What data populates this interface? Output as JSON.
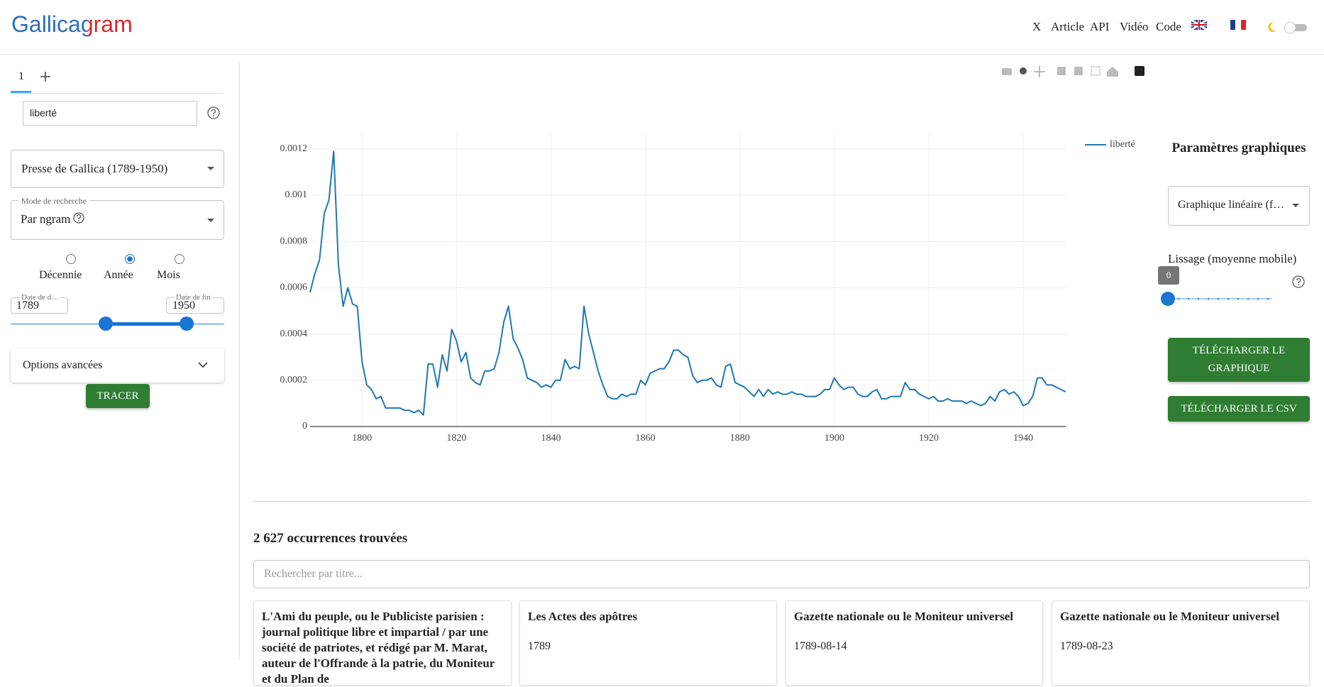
{
  "header": {
    "logo": "Gallicagram",
    "nav": [
      "X",
      "Article",
      "API",
      "Vidéo",
      "Code"
    ]
  },
  "sidebar": {
    "tab": "1",
    "query": "liberté",
    "corpus": "Presse de Gallica (1789-1950)",
    "mode_label": "Mode de recherche",
    "mode": "Par ngram",
    "resolutions": [
      "Décennie",
      "Année",
      "Mois"
    ],
    "start_label": "Date de d…",
    "start": 1789,
    "end_label": "Date de fin",
    "end": 1950,
    "advanced": "Options avancées",
    "button": "TRACER"
  },
  "chart_data": {
    "type": "line",
    "x": [
      1789,
      1790,
      1791,
      1792,
      1793,
      1794,
      1795,
      1796,
      1797,
      1798,
      1799,
      1800,
      1801,
      1802,
      1803,
      1804,
      1805,
      1806,
      1807,
      1808,
      1809,
      1810,
      1811,
      1812,
      1813,
      1814,
      1815,
      1816,
      1817,
      1818,
      1819,
      1820,
      1821,
      1822,
      1823,
      1824,
      1825,
      1826,
      1827,
      1828,
      1829,
      1830,
      1831,
      1832,
      1833,
      1834,
      1835,
      1836,
      1837,
      1838,
      1839,
      1840,
      1841,
      1842,
      1843,
      1844,
      1845,
      1846,
      1847,
      1848,
      1849,
      1850,
      1851,
      1852,
      1853,
      1854,
      1855,
      1856,
      1857,
      1858,
      1859,
      1860,
      1861,
      1862,
      1863,
      1864,
      1865,
      1866,
      1867,
      1868,
      1869,
      1870,
      1871,
      1872,
      1873,
      1874,
      1875,
      1876,
      1877,
      1878,
      1879,
      1880,
      1881,
      1882,
      1883,
      1884,
      1885,
      1886,
      1887,
      1888,
      1889,
      1890,
      1891,
      1892,
      1893,
      1894,
      1895,
      1896,
      1897,
      1898,
      1899,
      1900,
      1901,
      1902,
      1903,
      1904,
      1905,
      1906,
      1907,
      1908,
      1909,
      1910,
      1911,
      1912,
      1913,
      1914,
      1915,
      1916,
      1917,
      1918,
      1919,
      1920,
      1921,
      1922,
      1923,
      1924,
      1925,
      1926,
      1927,
      1928,
      1929,
      1930,
      1931,
      1932,
      1933,
      1934,
      1935,
      1936,
      1937,
      1938,
      1939,
      1940,
      1941,
      1942,
      1943,
      1944,
      1945,
      1946,
      1947,
      1948,
      1949
    ],
    "series": [
      {
        "name": "liberté",
        "color": "#1f77b4",
        "values": [
          0.00058,
          0.00066,
          0.00072,
          0.00092,
          0.00098,
          0.00119,
          0.0007,
          0.00052,
          0.0006,
          0.00053,
          0.00052,
          0.00028,
          0.00018,
          0.00016,
          0.00012,
          0.00013,
          8e-05,
          8e-05,
          8e-05,
          8e-05,
          7e-05,
          7e-05,
          6e-05,
          7e-05,
          5e-05,
          0.00027,
          0.00027,
          0.00017,
          0.00031,
          0.00024,
          0.00042,
          0.00037,
          0.00028,
          0.00032,
          0.00021,
          0.00019,
          0.00018,
          0.00024,
          0.00024,
          0.00025,
          0.00032,
          0.00045,
          0.00052,
          0.00038,
          0.00034,
          0.00029,
          0.00021,
          0.0002,
          0.00019,
          0.00017,
          0.00018,
          0.00017,
          0.0002,
          0.0002,
          0.00029,
          0.00025,
          0.00026,
          0.00025,
          0.00052,
          0.0004,
          0.00032,
          0.00024,
          0.00018,
          0.00013,
          0.00012,
          0.00012,
          0.00014,
          0.00013,
          0.00014,
          0.00014,
          0.0002,
          0.00018,
          0.00023,
          0.00024,
          0.00025,
          0.00025,
          0.00028,
          0.00033,
          0.00033,
          0.00031,
          0.0003,
          0.00022,
          0.00019,
          0.0002,
          0.0002,
          0.00021,
          0.00018,
          0.00017,
          0.00026,
          0.00027,
          0.00019,
          0.00018,
          0.00017,
          0.00015,
          0.00013,
          0.00016,
          0.00013,
          0.00016,
          0.00014,
          0.00015,
          0.00014,
          0.00014,
          0.00015,
          0.00014,
          0.00014,
          0.00013,
          0.00013,
          0.00013,
          0.00014,
          0.00016,
          0.00016,
          0.00021,
          0.00018,
          0.00016,
          0.00017,
          0.00017,
          0.00014,
          0.00013,
          0.00013,
          0.00015,
          0.00016,
          0.00012,
          0.00012,
          0.00013,
          0.00013,
          0.00013,
          0.00019,
          0.00016,
          0.00016,
          0.00014,
          0.00013,
          0.00012,
          0.00013,
          0.00011,
          0.00011,
          0.00012,
          0.00011,
          0.00011,
          0.00011,
          0.0001,
          0.00011,
          0.0001,
          9e-05,
          0.0001,
          0.00013,
          0.00011,
          0.00015,
          0.00016,
          0.00014,
          0.00015,
          0.00013,
          9e-05,
          0.0001,
          0.00013,
          0.00021,
          0.00021,
          0.00018,
          0.00018,
          0.00017,
          0.00016,
          0.00015
        ]
      }
    ],
    "xlim": [
      1789,
      1949
    ],
    "xticks": [
      1800,
      1820,
      1840,
      1860,
      1880,
      1900,
      1920,
      1940
    ],
    "ylim": [
      0,
      0.00127
    ],
    "yticks": [
      0,
      0.0002,
      0.0004,
      0.0006,
      0.0008,
      0.001,
      0.0012
    ],
    "grid": true,
    "legend": "top-right"
  },
  "settings": {
    "title": "Paramètres graphiques",
    "chart_type": "Graphique linéaire (f…",
    "smoothing_label": "Lissage (moyenne mobile)",
    "smoothing": 0,
    "download_chart": "TÉLÉCHARGER LE GRAPHIQUE",
    "download_csv": "TÉLÉCHARGER LE CSV"
  },
  "results": {
    "count": "2 627 occurrences trouvées",
    "search_placeholder": "Rechercher par titre...",
    "cards": [
      {
        "title": "L'Ami du peuple, ou le Publiciste parisien : journal politique libre et impartial / par une société de patriotes, et rédigé par M. Marat, auteur de l'Offrande à la patrie, du Moniteur et du Plan de"
      },
      {
        "title": "Les Actes des apôtres",
        "date": "1789"
      },
      {
        "title": "Gazette nationale ou le Moniteur universel",
        "date": "1789-08-14"
      },
      {
        "title": "Gazette nationale ou le Moniteur universel",
        "date": "1789-08-23"
      }
    ]
  }
}
